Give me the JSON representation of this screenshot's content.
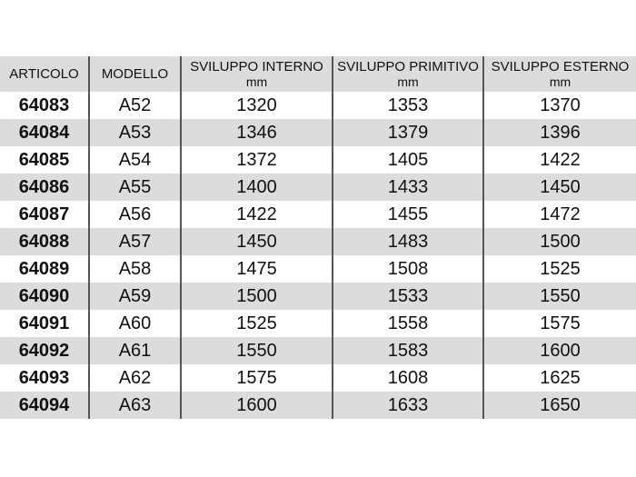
{
  "headers": [
    {
      "label": "ARTICOLO",
      "unit": ""
    },
    {
      "label": "MODELLO",
      "unit": ""
    },
    {
      "label": "SVILUPPO INTERNO",
      "unit": "mm"
    },
    {
      "label": "SVILUPPO PRIMITIVO",
      "unit": "mm"
    },
    {
      "label": "SVILUPPO ESTERNO",
      "unit": "mm"
    }
  ],
  "rows": [
    [
      "64083",
      "A52",
      "1320",
      "1353",
      "1370"
    ],
    [
      "64084",
      "A53",
      "1346",
      "1379",
      "1396"
    ],
    [
      "64085",
      "A54",
      "1372",
      "1405",
      "1422"
    ],
    [
      "64086",
      "A55",
      "1400",
      "1433",
      "1450"
    ],
    [
      "64087",
      "A56",
      "1422",
      "1455",
      "1472"
    ],
    [
      "64088",
      "A57",
      "1450",
      "1483",
      "1500"
    ],
    [
      "64089",
      "A58",
      "1475",
      "1508",
      "1525"
    ],
    [
      "64090",
      "A59",
      "1500",
      "1533",
      "1550"
    ],
    [
      "64091",
      "A60",
      "1525",
      "1558",
      "1575"
    ],
    [
      "64092",
      "A61",
      "1550",
      "1583",
      "1600"
    ],
    [
      "64093",
      "A62",
      "1575",
      "1608",
      "1625"
    ],
    [
      "64094",
      "A63",
      "1600",
      "1633",
      "1650"
    ]
  ]
}
